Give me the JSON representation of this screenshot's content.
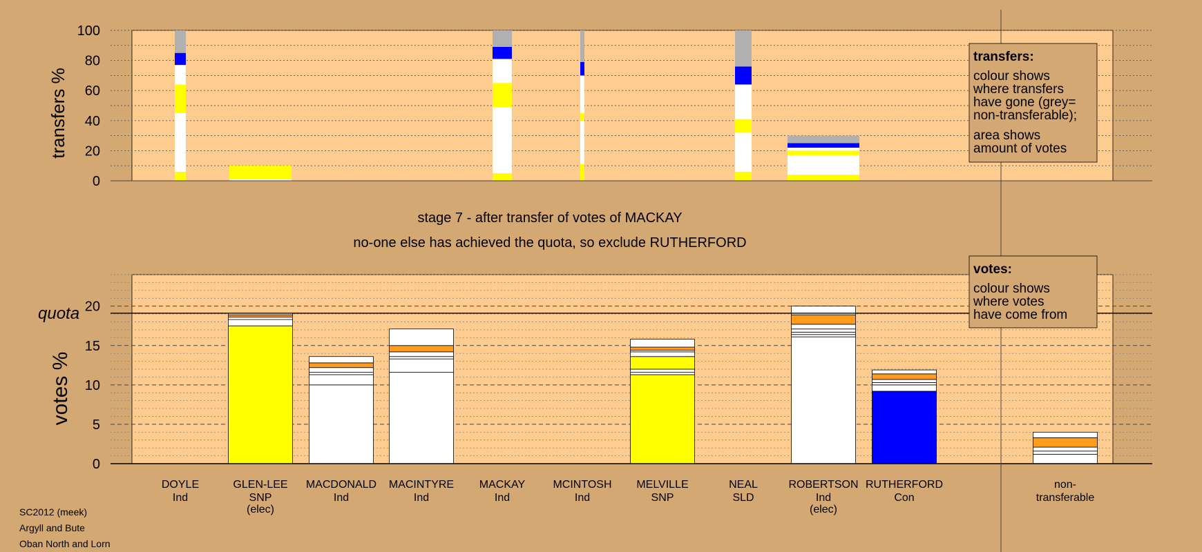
{
  "colors": {
    "background": "#d4a872",
    "panel": "#ffcc8f",
    "legend_box": "#d4a872",
    "snp": "#ffff00",
    "con": "#0000ff",
    "ind": "#ffffff",
    "sld": "#ff9c1c",
    "nontransferable": "#b0b0b0"
  },
  "chart_data": [
    {
      "type": "bar",
      "stacked": true,
      "ylabel": "transfers %",
      "ylim": [
        0,
        100
      ],
      "yticks": [
        0,
        20,
        40,
        60,
        80,
        100
      ],
      "grid": true,
      "candidates": [
        {
          "name": "DOYLE",
          "segments": [
            {
              "color": "yellow",
              "value": 6
            },
            {
              "color": "white",
              "value": 39
            },
            {
              "color": "yellow",
              "value": 19
            },
            {
              "color": "white",
              "value": 13
            },
            {
              "color": "blue",
              "value": 8
            },
            {
              "color": "grey",
              "value": 15
            }
          ]
        },
        {
          "name": "GLEN-LEE",
          "segments": [
            {
              "color": "white",
              "value": 1
            },
            {
              "color": "yellow",
              "value": 9
            }
          ]
        },
        {
          "name": "MACKAY",
          "segments": [
            {
              "color": "yellow",
              "value": 5
            },
            {
              "color": "white",
              "value": 44
            },
            {
              "color": "yellow",
              "value": 16
            },
            {
              "color": "white",
              "value": 16
            },
            {
              "color": "blue",
              "value": 8
            },
            {
              "color": "grey",
              "value": 11
            }
          ]
        },
        {
          "name": "MCINTOSH",
          "segments": [
            {
              "color": "yellow",
              "value": 11
            },
            {
              "color": "white",
              "value": 29
            },
            {
              "color": "yellow",
              "value": 5
            },
            {
              "color": "white",
              "value": 25
            },
            {
              "color": "blue",
              "value": 9
            },
            {
              "color": "grey",
              "value": 21
            }
          ]
        },
        {
          "name": "NEAL",
          "segments": [
            {
              "color": "yellow",
              "value": 6
            },
            {
              "color": "white",
              "value": 26
            },
            {
              "color": "yellow",
              "value": 9
            },
            {
              "color": "white",
              "value": 23
            },
            {
              "color": "blue",
              "value": 12
            },
            {
              "color": "grey",
              "value": 24
            }
          ]
        },
        {
          "name": "ROBERTSON",
          "segments": [
            {
              "color": "yellow",
              "value": 4
            },
            {
              "color": "white",
              "value": 13
            },
            {
              "color": "yellow",
              "value": 3
            },
            {
              "color": "white",
              "value": 2
            },
            {
              "color": "blue",
              "value": 3
            },
            {
              "color": "grey",
              "value": 5
            }
          ]
        }
      ],
      "legend": {
        "title": "transfers:",
        "lines1": [
          "colour shows",
          "where transfers",
          "have gone (grey=",
          "non-transferable);"
        ],
        "lines2": [
          "area shows",
          "amount of votes"
        ]
      }
    },
    {
      "type": "bar",
      "stacked": true,
      "ylabel": "votes %",
      "ylim": [
        0,
        24
      ],
      "yticks": [
        0,
        5,
        10,
        15,
        20
      ],
      "quota": 19.1,
      "quota_label": "quota",
      "grid": true,
      "candidates": [
        {
          "name": "DOYLE",
          "party": "Ind",
          "elected": "",
          "segments": []
        },
        {
          "name": "GLEN-LEE",
          "party": "SNP",
          "elected": "(elec)",
          "segments": [
            {
              "color": "yellow",
              "value": 17.5
            },
            {
              "color": "white",
              "value": 0.8
            },
            {
              "color": "white",
              "value": 0.3
            },
            {
              "color": "orange",
              "value": 0.3
            },
            {
              "color": "white",
              "value": 0.2
            }
          ]
        },
        {
          "name": "MACDONALD",
          "party": "Ind",
          "elected": "",
          "segments": [
            {
              "color": "white",
              "value": 10.0
            },
            {
              "color": "white",
              "value": 1.3
            },
            {
              "color": "white",
              "value": 0.3
            },
            {
              "color": "white",
              "value": 0.6
            },
            {
              "color": "orange",
              "value": 0.6
            },
            {
              "color": "white",
              "value": 0.8
            }
          ]
        },
        {
          "name": "MACINTYRE",
          "party": "Ind",
          "elected": "",
          "segments": [
            {
              "color": "white",
              "value": 11.6
            },
            {
              "color": "white",
              "value": 1.7
            },
            {
              "color": "white",
              "value": 0.3
            },
            {
              "color": "white",
              "value": 0.6
            },
            {
              "color": "orange",
              "value": 0.8
            },
            {
              "color": "white",
              "value": 2.1
            }
          ]
        },
        {
          "name": "MACKAY",
          "party": "Ind",
          "elected": "",
          "segments": []
        },
        {
          "name": "MCINTOSH",
          "party": "Ind",
          "elected": "",
          "segments": []
        },
        {
          "name": "MELVILLE",
          "party": "SNP",
          "elected": "",
          "segments": [
            {
              "color": "yellow",
              "value": 11.3
            },
            {
              "color": "white",
              "value": 0.3
            },
            {
              "color": "white",
              "value": 0.4
            },
            {
              "color": "yellow",
              "value": 1.6
            },
            {
              "color": "white",
              "value": 0.6
            },
            {
              "color": "white",
              "value": 0.2
            },
            {
              "color": "orange",
              "value": 0.4
            },
            {
              "color": "white",
              "value": 1.0
            }
          ]
        },
        {
          "name": "NEAL",
          "party": "SLD",
          "elected": "",
          "segments": []
        },
        {
          "name": "ROBERTSON",
          "party": "Ind",
          "elected": "(elec)",
          "segments": [
            {
              "color": "white",
              "value": 16.1
            },
            {
              "color": "white",
              "value": 0.3
            },
            {
              "color": "white",
              "value": 0.3
            },
            {
              "color": "white",
              "value": 0.4
            },
            {
              "color": "white",
              "value": 0.6
            },
            {
              "color": "orange",
              "value": 1.2
            },
            {
              "color": "white",
              "value": 1.1
            }
          ]
        },
        {
          "name": "RUTHERFORD",
          "party": "Con",
          "elected": "",
          "segments": [
            {
              "color": "blue",
              "value": 9.2
            },
            {
              "color": "white",
              "value": 0.8
            },
            {
              "color": "white",
              "value": 0.3
            },
            {
              "color": "white",
              "value": 0.4
            },
            {
              "color": "orange",
              "value": 0.7
            },
            {
              "color": "white",
              "value": 0.5
            }
          ]
        },
        {
          "name": "non-",
          "party": "transferable",
          "elected": "",
          "segments": [
            {
              "color": "white",
              "value": 1.2
            },
            {
              "color": "white",
              "value": 0.4
            },
            {
              "color": "white",
              "value": 0.5
            },
            {
              "color": "orange",
              "value": 1.2
            },
            {
              "color": "white",
              "value": 0.7
            }
          ]
        }
      ],
      "legend": {
        "title": "votes:",
        "lines1": [
          "colour shows",
          "where votes",
          "have come from"
        ]
      }
    }
  ],
  "stage_title": "stage 7 - after transfer of votes of MACKAY",
  "stage_subtitle": "no-one else has achieved the quota, so exclude RUTHERFORD",
  "footer": [
    "SC2012 (meek)",
    "Argyll and Bute",
    "Oban North and Lorn"
  ]
}
